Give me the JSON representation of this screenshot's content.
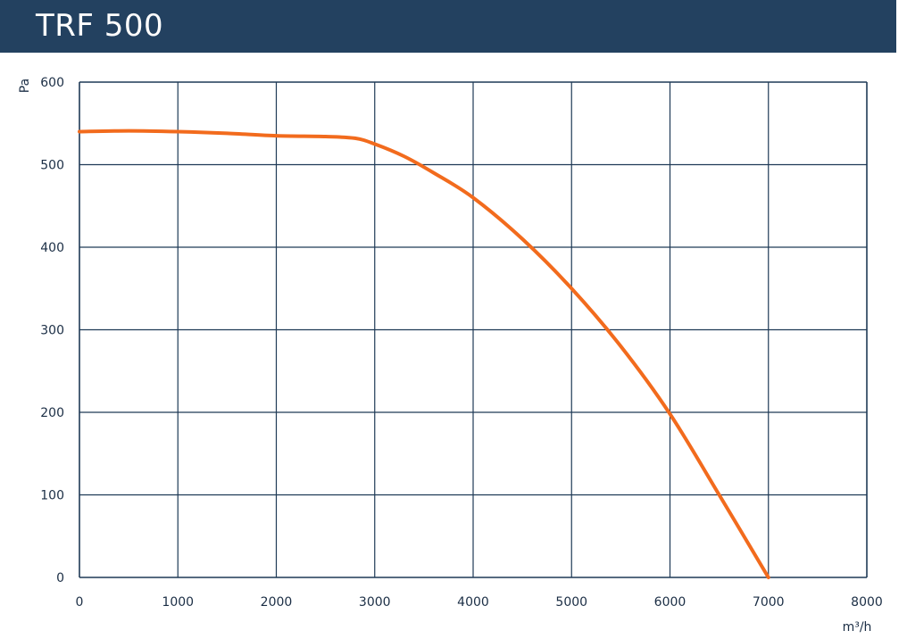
{
  "header": {
    "title": "TRF 500"
  },
  "colors": {
    "header_bg": "#234160",
    "grid": "#1f3a56",
    "curve": "#f26b1d"
  },
  "chart_data": {
    "type": "line",
    "title": "TRF 500",
    "xlabel": "m³/h",
    "ylabel": "Pa",
    "xlim": [
      0,
      8000
    ],
    "ylim": [
      0,
      600
    ],
    "grid": true,
    "x_ticks": [
      "0",
      "1000",
      "2000",
      "3000",
      "4000",
      "5000",
      "6000",
      "7000",
      "8000"
    ],
    "y_ticks": [
      "0",
      "100",
      "200",
      "300",
      "400",
      "500",
      "600"
    ],
    "series": [
      {
        "x": [
          0,
          500,
          1000,
          1500,
          2000,
          2500,
          2800,
          3000,
          3300,
          3600,
          4000,
          4500,
          5000,
          5500,
          6000,
          6500,
          7000
        ],
        "y": [
          540,
          541,
          540,
          538,
          535,
          534,
          532,
          525,
          510,
          490,
          460,
          410,
          350,
          280,
          198,
          100,
          0
        ]
      }
    ]
  }
}
